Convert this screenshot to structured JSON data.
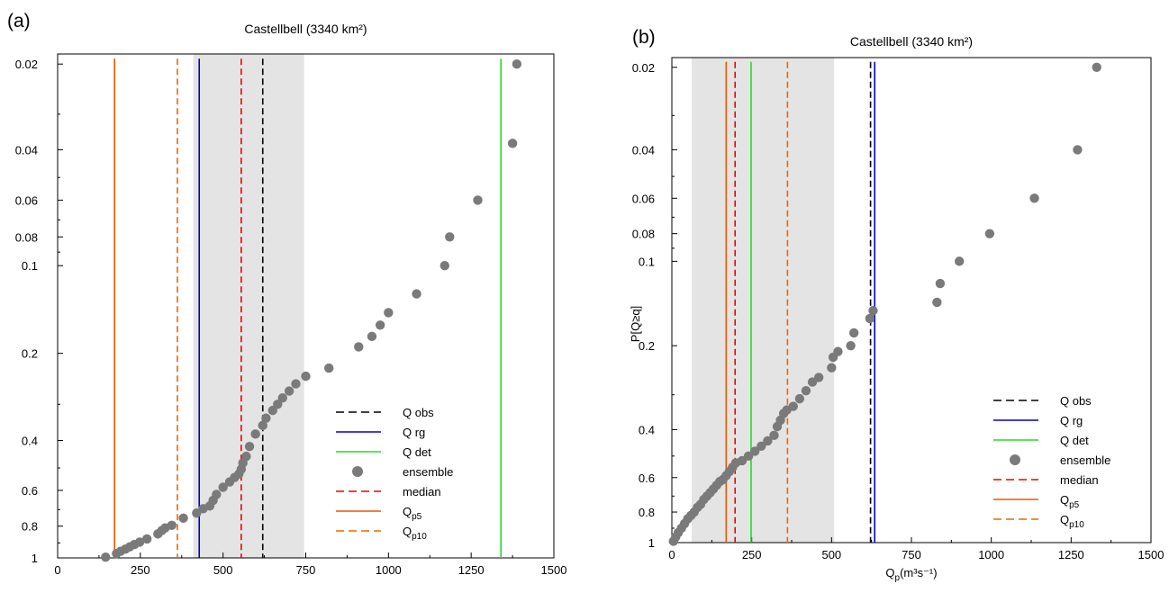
{
  "chart_data": [
    {
      "panel_label": "(a)",
      "type": "scatter",
      "title": "Castellbell (3340 km²)",
      "xlabel": "",
      "ylabel": "",
      "xlim": [
        0,
        1500
      ],
      "ylim": [
        0.02,
        1
      ],
      "y_scale": "probability (inverted, log-like)",
      "x_ticks": [
        "0",
        "250",
        "500",
        "750",
        "1000",
        "1250",
        "1500"
      ],
      "y_ticks": [
        "0.02",
        "0.04",
        "0.06",
        "0.08",
        "0.1",
        "0.2",
        "0.4",
        "0.6",
        "0.8",
        "1"
      ],
      "shaded_band": [
        410,
        745
      ],
      "vlines": [
        {
          "name": "Q obs",
          "x": 620,
          "color": "#000000",
          "dash": true
        },
        {
          "name": "Q rg",
          "x": 428,
          "color": "#0000cc",
          "dash": false
        },
        {
          "name": "Q det",
          "x": 1340,
          "color": "#22dd22",
          "dash": false
        },
        {
          "name": "median",
          "x": 555,
          "color": "#ee0000",
          "dash": true
        },
        {
          "name": "Qp5",
          "x": 172,
          "color": "#ee5500",
          "dash": false
        },
        {
          "name": "Qp10",
          "x": 362,
          "color": "#ee6600",
          "dash": true
        }
      ],
      "legend_order": [
        "Q obs",
        "Q rg",
        "Q det",
        "ensemble",
        "median",
        "Qp5",
        "Qp10"
      ],
      "legend": [
        {
          "label": "Q obs",
          "sub": ""
        },
        {
          "label": "Q rg",
          "sub": ""
        },
        {
          "label": "Q det",
          "sub": ""
        },
        {
          "label": "ensemble",
          "sub": ""
        },
        {
          "label": "median",
          "sub": ""
        },
        {
          "label": "Q",
          "sub": "p5"
        },
        {
          "label": "Q",
          "sub": "p10"
        }
      ],
      "legend_placement": "bottom-right",
      "series": [
        {
          "name": "ensemble",
          "x": [
            145,
            178,
            190,
            205,
            218,
            232,
            248,
            270,
            303,
            315,
            325,
            345,
            380,
            420,
            440,
            460,
            470,
            480,
            500,
            520,
            535,
            548,
            555,
            560,
            570,
            580,
            598,
            620,
            630,
            650,
            665,
            680,
            700,
            720,
            750,
            820,
            910,
            950,
            975,
            1000,
            1085,
            1170,
            1185,
            1270,
            1375,
            1388
          ],
          "y": [
            0.995,
            0.97,
            0.955,
            0.94,
            0.925,
            0.91,
            0.895,
            0.875,
            0.845,
            0.825,
            0.81,
            0.795,
            0.75,
            0.72,
            0.695,
            0.68,
            0.65,
            0.62,
            0.585,
            0.56,
            0.54,
            0.525,
            0.505,
            0.48,
            0.455,
            0.42,
            0.38,
            0.355,
            0.335,
            0.315,
            0.3,
            0.285,
            0.27,
            0.255,
            0.24,
            0.225,
            0.19,
            0.175,
            0.16,
            0.145,
            0.125,
            0.1,
            0.08,
            0.06,
            0.038,
            0.02
          ]
        }
      ]
    },
    {
      "panel_label": "(b)",
      "type": "scatter",
      "title": "Castellbell (3340 km²)",
      "xlabel": "Q",
      "xlabel_sub": "p",
      "xlabel_units": "(m³s⁻¹)",
      "ylabel": "P[Q≥q]",
      "xlim": [
        0,
        1500
      ],
      "ylim": [
        0.02,
        1
      ],
      "y_scale": "probability (inverted, log-like)",
      "x_ticks": [
        "0",
        "250",
        "500",
        "750",
        "1000",
        "1250",
        "1500"
      ],
      "y_ticks": [
        "0.02",
        "0.04",
        "0.06",
        "0.08",
        "0.1",
        "0.2",
        "0.4",
        "0.6",
        "0.8",
        "1"
      ],
      "shaded_band": [
        62,
        508
      ],
      "vlines": [
        {
          "name": "Q obs",
          "x": 622,
          "color": "#000000",
          "dash": true
        },
        {
          "name": "Q rg",
          "x": 635,
          "color": "#0000cc",
          "dash": false
        },
        {
          "name": "Q det",
          "x": 248,
          "color": "#22dd22",
          "dash": false
        },
        {
          "name": "median",
          "x": 198,
          "color": "#ee0000",
          "dash": true
        },
        {
          "name": "Qp5",
          "x": 170,
          "color": "#ee5500",
          "dash": false
        },
        {
          "name": "Qp10",
          "x": 362,
          "color": "#ee6600",
          "dash": true
        }
      ],
      "legend_order": [
        "Q obs",
        "Q rg",
        "Q det",
        "ensemble",
        "median",
        "Qp5",
        "Qp10"
      ],
      "legend": [
        {
          "label": "Q obs",
          "sub": ""
        },
        {
          "label": "Q rg",
          "sub": ""
        },
        {
          "label": "Q det",
          "sub": ""
        },
        {
          "label": "ensemble",
          "sub": ""
        },
        {
          "label": "median",
          "sub": ""
        },
        {
          "label": "Q",
          "sub": "p5"
        },
        {
          "label": "Q",
          "sub": "p10"
        }
      ],
      "legend_placement": "bottom-right",
      "series": [
        {
          "name": "ensemble",
          "x": [
            5,
            12,
            20,
            30,
            40,
            50,
            60,
            70,
            80,
            90,
            100,
            110,
            120,
            130,
            140,
            150,
            160,
            170,
            180,
            190,
            200,
            220,
            240,
            260,
            280,
            300,
            320,
            330,
            340,
            350,
            360,
            380,
            400,
            420,
            440,
            460,
            500,
            505,
            520,
            560,
            570,
            620,
            630,
            830,
            840,
            900,
            995,
            1135,
            1270,
            1330
          ],
          "y": [
            0.99,
            0.96,
            0.93,
            0.9,
            0.87,
            0.84,
            0.82,
            0.8,
            0.77,
            0.75,
            0.72,
            0.7,
            0.68,
            0.66,
            0.64,
            0.62,
            0.61,
            0.59,
            0.57,
            0.55,
            0.53,
            0.52,
            0.5,
            0.48,
            0.46,
            0.44,
            0.42,
            0.39,
            0.37,
            0.35,
            0.34,
            0.33,
            0.31,
            0.29,
            0.27,
            0.26,
            0.24,
            0.22,
            0.21,
            0.2,
            0.18,
            0.16,
            0.15,
            0.14,
            0.12,
            0.1,
            0.08,
            0.06,
            0.04,
            0.02
          ]
        }
      ]
    }
  ]
}
